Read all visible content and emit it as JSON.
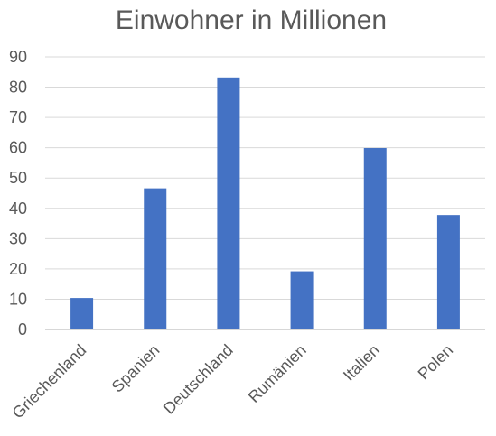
{
  "chart_data": {
    "type": "bar",
    "title": "Einwohner in Millionen",
    "xlabel": "",
    "ylabel": "",
    "categories": [
      "Griechenland",
      "Spanien",
      "Deutschland",
      "Rumänien",
      "Italien",
      "Polen"
    ],
    "values": [
      10.4,
      46.6,
      83.2,
      19.2,
      59.9,
      37.8
    ],
    "yticks": [
      0,
      10,
      20,
      30,
      40,
      50,
      60,
      70,
      80,
      90
    ],
    "ylim": [
      0,
      90
    ],
    "grid": true,
    "legend": "none",
    "bar_color": "#4472c4"
  }
}
